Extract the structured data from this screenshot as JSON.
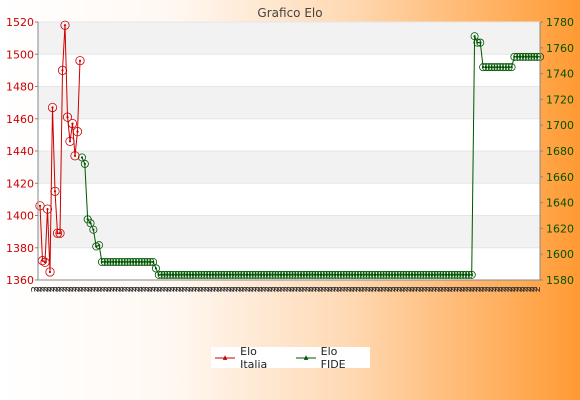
{
  "chart_data": {
    "type": "line",
    "title": "Grafico Elo",
    "colors": {
      "elo_italia": "#cc0000",
      "elo_fide": "#005500",
      "grid_band": "#f2f2f2"
    },
    "left_axis": {
      "ylim": [
        1360,
        1520
      ],
      "ticks": [
        "1360",
        "1380",
        "1400",
        "1420",
        "1440",
        "1460",
        "1480",
        "1500",
        "1520"
      ],
      "color": "#cc0000"
    },
    "right_axis": {
      "ylim": [
        1580,
        1780
      ],
      "ticks": [
        "1580",
        "1600",
        "1620",
        "1640",
        "1660",
        "1680",
        "1700",
        "1720",
        "1740",
        "1760",
        "1780"
      ],
      "color": "#005500"
    },
    "grid": true,
    "legend_position": "bottom",
    "series": [
      {
        "name": "Elo Italia",
        "axis": "left",
        "values": [
          1406,
          1372,
          1371,
          1404,
          1365,
          1467,
          1415,
          1389,
          1389,
          1490,
          1518,
          1461,
          1446,
          1457,
          1437,
          1452,
          1496
        ]
      },
      {
        "name": "Elo FIDE",
        "axis": "right",
        "values": [
          1675,
          1670,
          1627,
          1624,
          1619,
          1606,
          1607,
          1594,
          1594,
          1594,
          1594,
          1594,
          1594,
          1594,
          1594,
          1594,
          1594,
          1594,
          1594,
          1594,
          1594,
          1594,
          1594,
          1594,
          1594,
          1594,
          1589,
          1584,
          1584,
          1584,
          1584,
          1584,
          1584,
          1584,
          1584,
          1584,
          1584,
          1584,
          1584,
          1584,
          1584,
          1584,
          1584,
          1584,
          1584,
          1584,
          1584,
          1584,
          1584,
          1584,
          1584,
          1584,
          1584,
          1584,
          1584,
          1584,
          1584,
          1584,
          1584,
          1584,
          1584,
          1584,
          1584,
          1584,
          1584,
          1584,
          1584,
          1584,
          1584,
          1584,
          1584,
          1584,
          1584,
          1584,
          1584,
          1584,
          1584,
          1584,
          1584,
          1584,
          1584,
          1584,
          1584,
          1584,
          1584,
          1584,
          1584,
          1584,
          1584,
          1584,
          1584,
          1584,
          1584,
          1584,
          1584,
          1584,
          1584,
          1584,
          1584,
          1584,
          1584,
          1584,
          1584,
          1584,
          1584,
          1584,
          1584,
          1584,
          1584,
          1584,
          1584,
          1584,
          1584,
          1584,
          1584,
          1584,
          1584,
          1584,
          1584,
          1584,
          1584,
          1584,
          1584,
          1584,
          1584,
          1584,
          1584,
          1584,
          1584,
          1584,
          1584,
          1584,
          1584,
          1584,
          1584,
          1584,
          1584,
          1584,
          1769,
          1764,
          1764,
          1745,
          1745,
          1745,
          1745,
          1745,
          1745,
          1745,
          1745,
          1745,
          1745,
          1745,
          1753,
          1753,
          1753,
          1753,
          1753,
          1753,
          1753,
          1753,
          1753,
          1753
        ]
      }
    ],
    "x_tick_label": "2",
    "x_tick_count": 160
  }
}
